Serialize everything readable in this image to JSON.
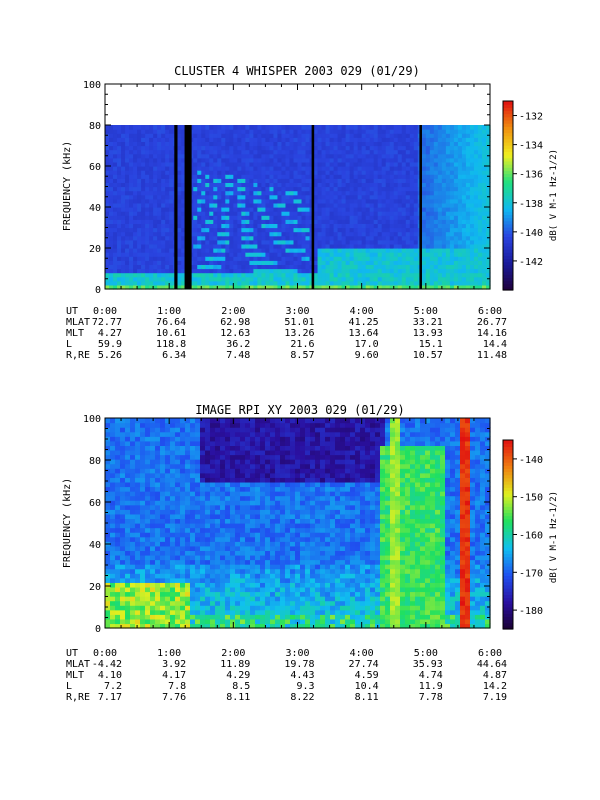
{
  "chart_data": [
    {
      "type": "heatmap",
      "title": "CLUSTER 4 WHISPER 2003 029 (01/29)",
      "ylabel": "FREQUENCY (kHz)",
      "xlim": [
        0,
        6
      ],
      "ylim": [
        0,
        100
      ],
      "y_ticks": [
        "0",
        "20",
        "40",
        "60",
        "80",
        "100"
      ],
      "data_upper_limit_khz": 80,
      "colorbar": {
        "label": "dB( V M-1 Hz-1/2)",
        "range": [
          -144,
          -131
        ],
        "ticks": [
          "-132",
          "-134",
          "-136",
          "-138",
          "-140",
          "-142"
        ],
        "colors": [
          "#20003a",
          "#1a1a9a",
          "#2a44e0",
          "#10b8f0",
          "#20e080",
          "#f0f020",
          "#f09010",
          "#e01010"
        ]
      },
      "data_gaps_ut": [
        [
          1.08,
          1.13
        ],
        [
          1.24,
          1.35
        ],
        [
          3.22,
          3.26
        ],
        [
          4.9,
          4.94
        ]
      ],
      "ephemeris": {
        "labels": [
          "UT",
          "MLAT",
          "MLT",
          "L",
          "R,RE"
        ],
        "x": [
          0,
          1,
          2,
          3,
          4,
          5,
          6
        ],
        "rows": [
          [
            "0:00",
            "1:00",
            "2:00",
            "3:00",
            "4:00",
            "5:00",
            "6:00"
          ],
          [
            "72.77",
            "76.64",
            "62.98",
            "51.01",
            "41.25",
            "33.21",
            "26.77"
          ],
          [
            "4.27",
            "10.61",
            "12.63",
            "13.26",
            "13.64",
            "13.93",
            "14.16"
          ],
          [
            "59.9",
            "118.8",
            "36.2",
            "21.6",
            "17.0",
            "15.1",
            "14.4"
          ],
          [
            "5.26",
            "6.34",
            "7.48",
            "8.57",
            "9.60",
            "10.57",
            "11.48"
          ]
        ]
      }
    },
    {
      "type": "heatmap",
      "title": "IMAGE RPI XY 2003 029 (01/29)",
      "ylabel": "FREQUENCY (kHz)",
      "xlim": [
        0,
        6
      ],
      "ylim": [
        0,
        100
      ],
      "y_ticks": [
        "0",
        "20",
        "40",
        "60",
        "80",
        "100"
      ],
      "colorbar": {
        "label": "dB( V M-1 Hz-1/2)",
        "range": [
          -185,
          -135
        ],
        "ticks": [
          "-140",
          "-150",
          "-160",
          "-170",
          "-180"
        ],
        "colors": [
          "#1a0030",
          "#2a10a0",
          "#2050f0",
          "#10c0f0",
          "#20e060",
          "#e0f020",
          "#f08010",
          "#e01010"
        ]
      },
      "bright_emission_ut": [
        [
          4.45,
          4.6
        ],
        [
          5.55,
          5.62
        ]
      ],
      "ephemeris": {
        "labels": [
          "UT",
          "MLAT",
          "MLT",
          "L",
          "R,RE"
        ],
        "x": [
          0,
          1,
          2,
          3,
          4,
          5,
          6
        ],
        "rows": [
          [
            "0:00",
            "1:00",
            "2:00",
            "3:00",
            "4:00",
            "5:00",
            "6:00"
          ],
          [
            "-4.42",
            "3.92",
            "11.89",
            "19.78",
            "27.74",
            "35.93",
            "44.64"
          ],
          [
            "4.10",
            "4.17",
            "4.29",
            "4.43",
            "4.59",
            "4.74",
            "4.87"
          ],
          [
            "7.2",
            "7.8",
            "8.5",
            "9.3",
            "10.4",
            "11.9",
            "14.2"
          ],
          [
            "7.17",
            "7.76",
            "8.11",
            "8.22",
            "8.11",
            "7.78",
            "7.19"
          ]
        ]
      }
    }
  ]
}
